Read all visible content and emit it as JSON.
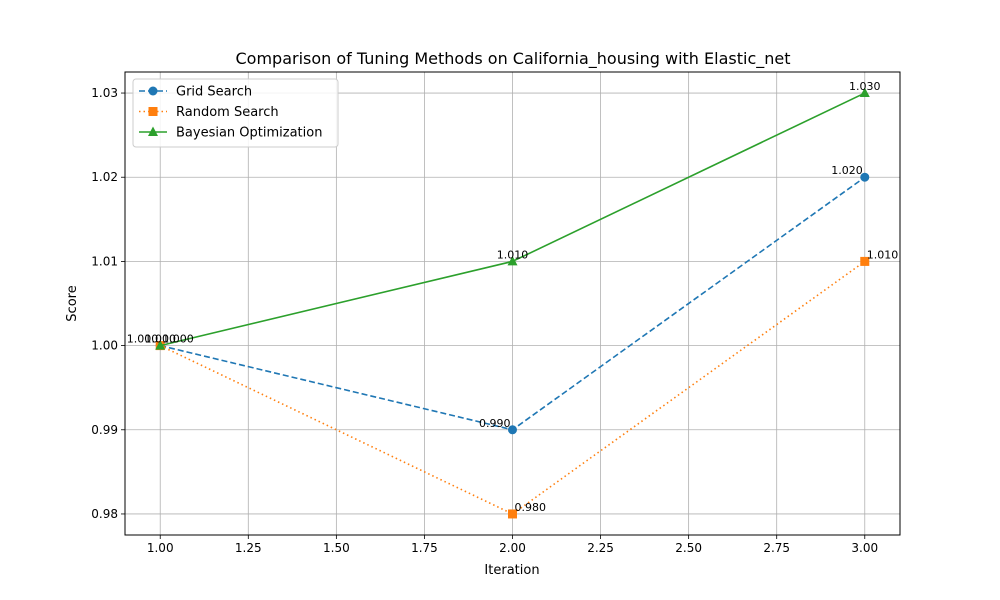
{
  "chart_data": {
    "type": "line",
    "title": "Comparison of Tuning Methods on California_housing with Elastic_net",
    "xlabel": "Iteration",
    "ylabel": "Score",
    "x": [
      1,
      2,
      3
    ],
    "xlim": [
      0.9,
      3.1
    ],
    "ylim": [
      0.9775,
      1.0325
    ],
    "xticks": [
      "1.00",
      "1.25",
      "1.50",
      "1.75",
      "2.00",
      "2.25",
      "2.50",
      "2.75",
      "3.00"
    ],
    "yticks": [
      "0.98",
      "0.99",
      "1.00",
      "1.01",
      "1.02",
      "1.03"
    ],
    "grid": true,
    "legend_position": "top-left",
    "series": [
      {
        "name": "Grid Search",
        "values": [
          1.0,
          0.99,
          1.02
        ],
        "labels": [
          "1.000",
          "0.990",
          "1.020"
        ],
        "color": "#1f77b4",
        "linestyle": "dashed",
        "marker": "circle"
      },
      {
        "name": "Random Search",
        "values": [
          1.0,
          0.98,
          1.01
        ],
        "labels": [
          "1.000",
          "0.980",
          "1.010"
        ],
        "color": "#ff7f0e",
        "linestyle": "dotted",
        "marker": "square"
      },
      {
        "name": "Bayesian Optimization",
        "values": [
          1.0,
          1.01,
          1.03
        ],
        "labels": [
          "1.000",
          "1.010",
          "1.030"
        ],
        "color": "#2ca02c",
        "linestyle": "solid",
        "marker": "triangle"
      }
    ]
  }
}
